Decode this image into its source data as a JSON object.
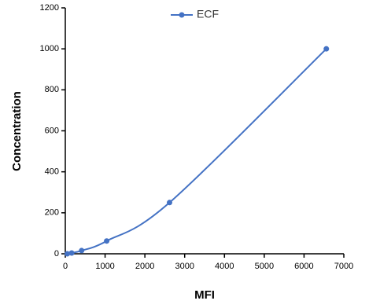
{
  "chart_data": {
    "type": "line",
    "x_label": "MFI",
    "y_label": "Concentration",
    "x": [
      50,
      160,
      410,
      1040,
      2620,
      6560
    ],
    "series": [
      {
        "name": "ECF",
        "color": "#4472c4",
        "values": [
          0,
          3.9,
          15.6,
          62.5,
          250,
          1000
        ]
      }
    ],
    "xlim": [
      0,
      7000
    ],
    "xticks": [
      0,
      1000,
      2000,
      3000,
      4000,
      5000,
      6000,
      7000
    ],
    "ylim": [
      0,
      1200
    ],
    "yticks": [
      0,
      200,
      400,
      600,
      800,
      1000,
      1200
    ],
    "grid": false,
    "legend": "top"
  }
}
